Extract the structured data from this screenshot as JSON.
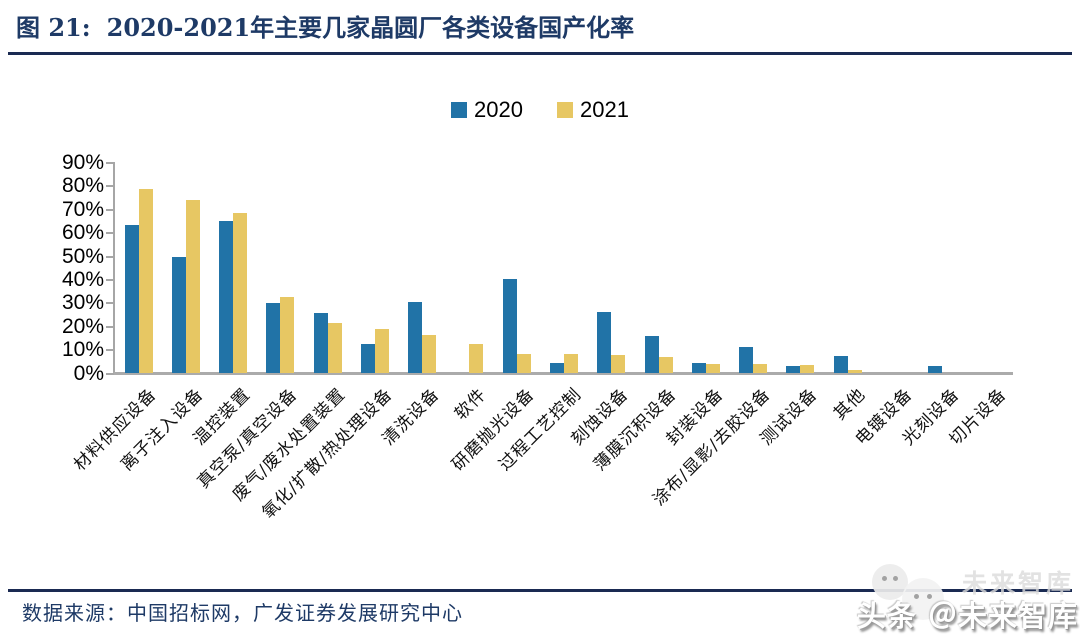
{
  "header": {
    "figure_label": "图 21:",
    "title": "2020-2021年主要几家晶圆厂各类设备国产化率"
  },
  "chart_data": {
    "type": "bar",
    "title": "2020-2021年主要几家晶圆厂各类设备国产化率",
    "categories": [
      "材料供应设备",
      "离子注入设备",
      "温控装置",
      "真空泵/真空设备",
      "废气/废水处置装置",
      "氧化/扩散/热处理设备",
      "清洗设备",
      "软件",
      "研磨抛光设备",
      "过程工艺控制",
      "刻蚀设备",
      "薄膜沉积设备",
      "封装设备",
      "涂布/显影/去胶设备",
      "测试设备",
      "其他",
      "电镀设备",
      "光刻设备",
      "切片设备"
    ],
    "series": [
      {
        "name": "2020",
        "color": "#2173A7",
        "values": [
          63.5,
          50,
          65,
          30,
          26,
          12.5,
          30.5,
          0,
          40.5,
          4.5,
          26.5,
          16,
          4.5,
          11.5,
          3,
          7.5,
          0,
          3,
          0
        ]
      },
      {
        "name": "2021",
        "color": "#E7C763",
        "values": [
          79,
          74,
          68.5,
          32.5,
          21.5,
          19,
          16.5,
          12.5,
          8.5,
          8.5,
          8,
          7,
          4,
          4,
          3.5,
          1.5,
          0,
          0,
          0
        ]
      }
    ],
    "xlabel": "",
    "ylabel": "",
    "ylim": [
      0,
      90
    ],
    "ytick_step": 10,
    "ytick_suffix": "%",
    "grid": false,
    "legend_position": "top-center",
    "axis_color": "#A6A6A6"
  },
  "footer": {
    "source": "数据来源：中国招标网，广发证券发展研究中心"
  },
  "watermark": {
    "text": "头条 ＠未来智库",
    "ghost_text": "未来智库"
  }
}
